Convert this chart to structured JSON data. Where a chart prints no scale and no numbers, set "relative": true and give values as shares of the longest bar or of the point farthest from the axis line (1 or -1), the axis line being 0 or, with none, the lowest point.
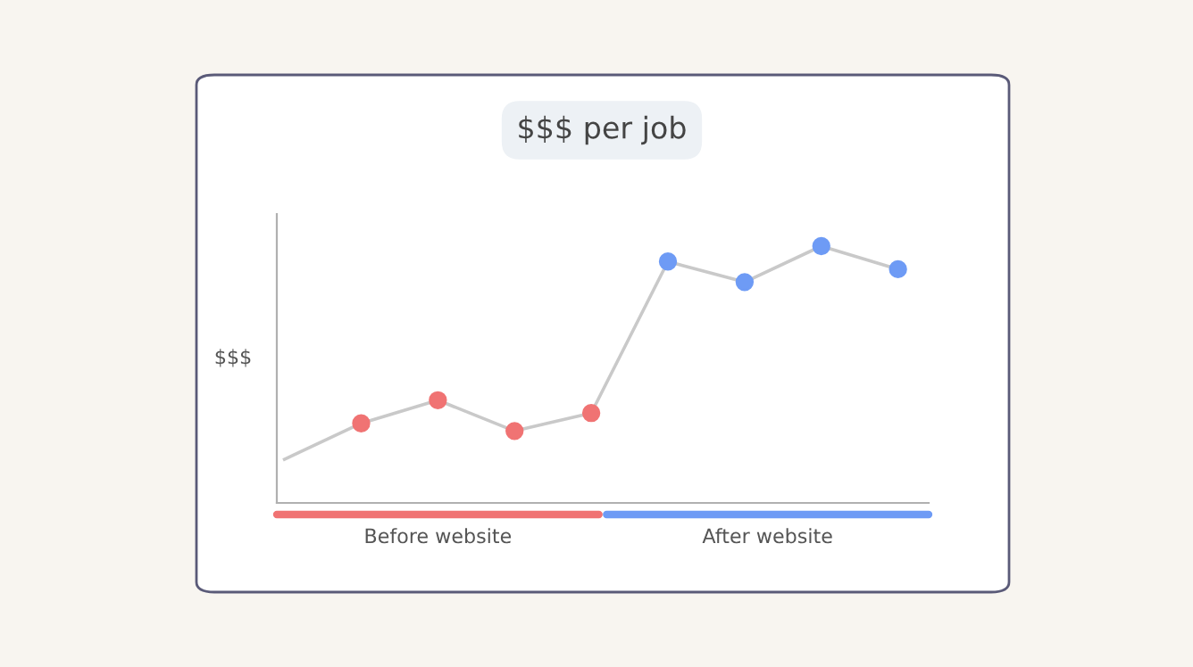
{
  "chart_data": {
    "type": "line",
    "title": "$$$ per job",
    "ylabel": "$$$",
    "relative": true,
    "categories": [
      null,
      null,
      null,
      null,
      null,
      null,
      null,
      null,
      null
    ],
    "series": [
      {
        "color": "#c9c9c9",
        "marker": "circle",
        "values": [
          0.17,
          0.31,
          0.4,
          0.28,
          0.35,
          0.94,
          0.86,
          1,
          0.91
        ],
        "colors": [
          null,
          "#f07373",
          "#f07373",
          "#f07373",
          "#f07373",
          "#6e9bf5",
          "#6e9bf5",
          "#6e9bf5",
          "#6e9bf5"
        ]
      }
    ],
    "annotations": [
      "Before website",
      "After website"
    ]
  }
}
